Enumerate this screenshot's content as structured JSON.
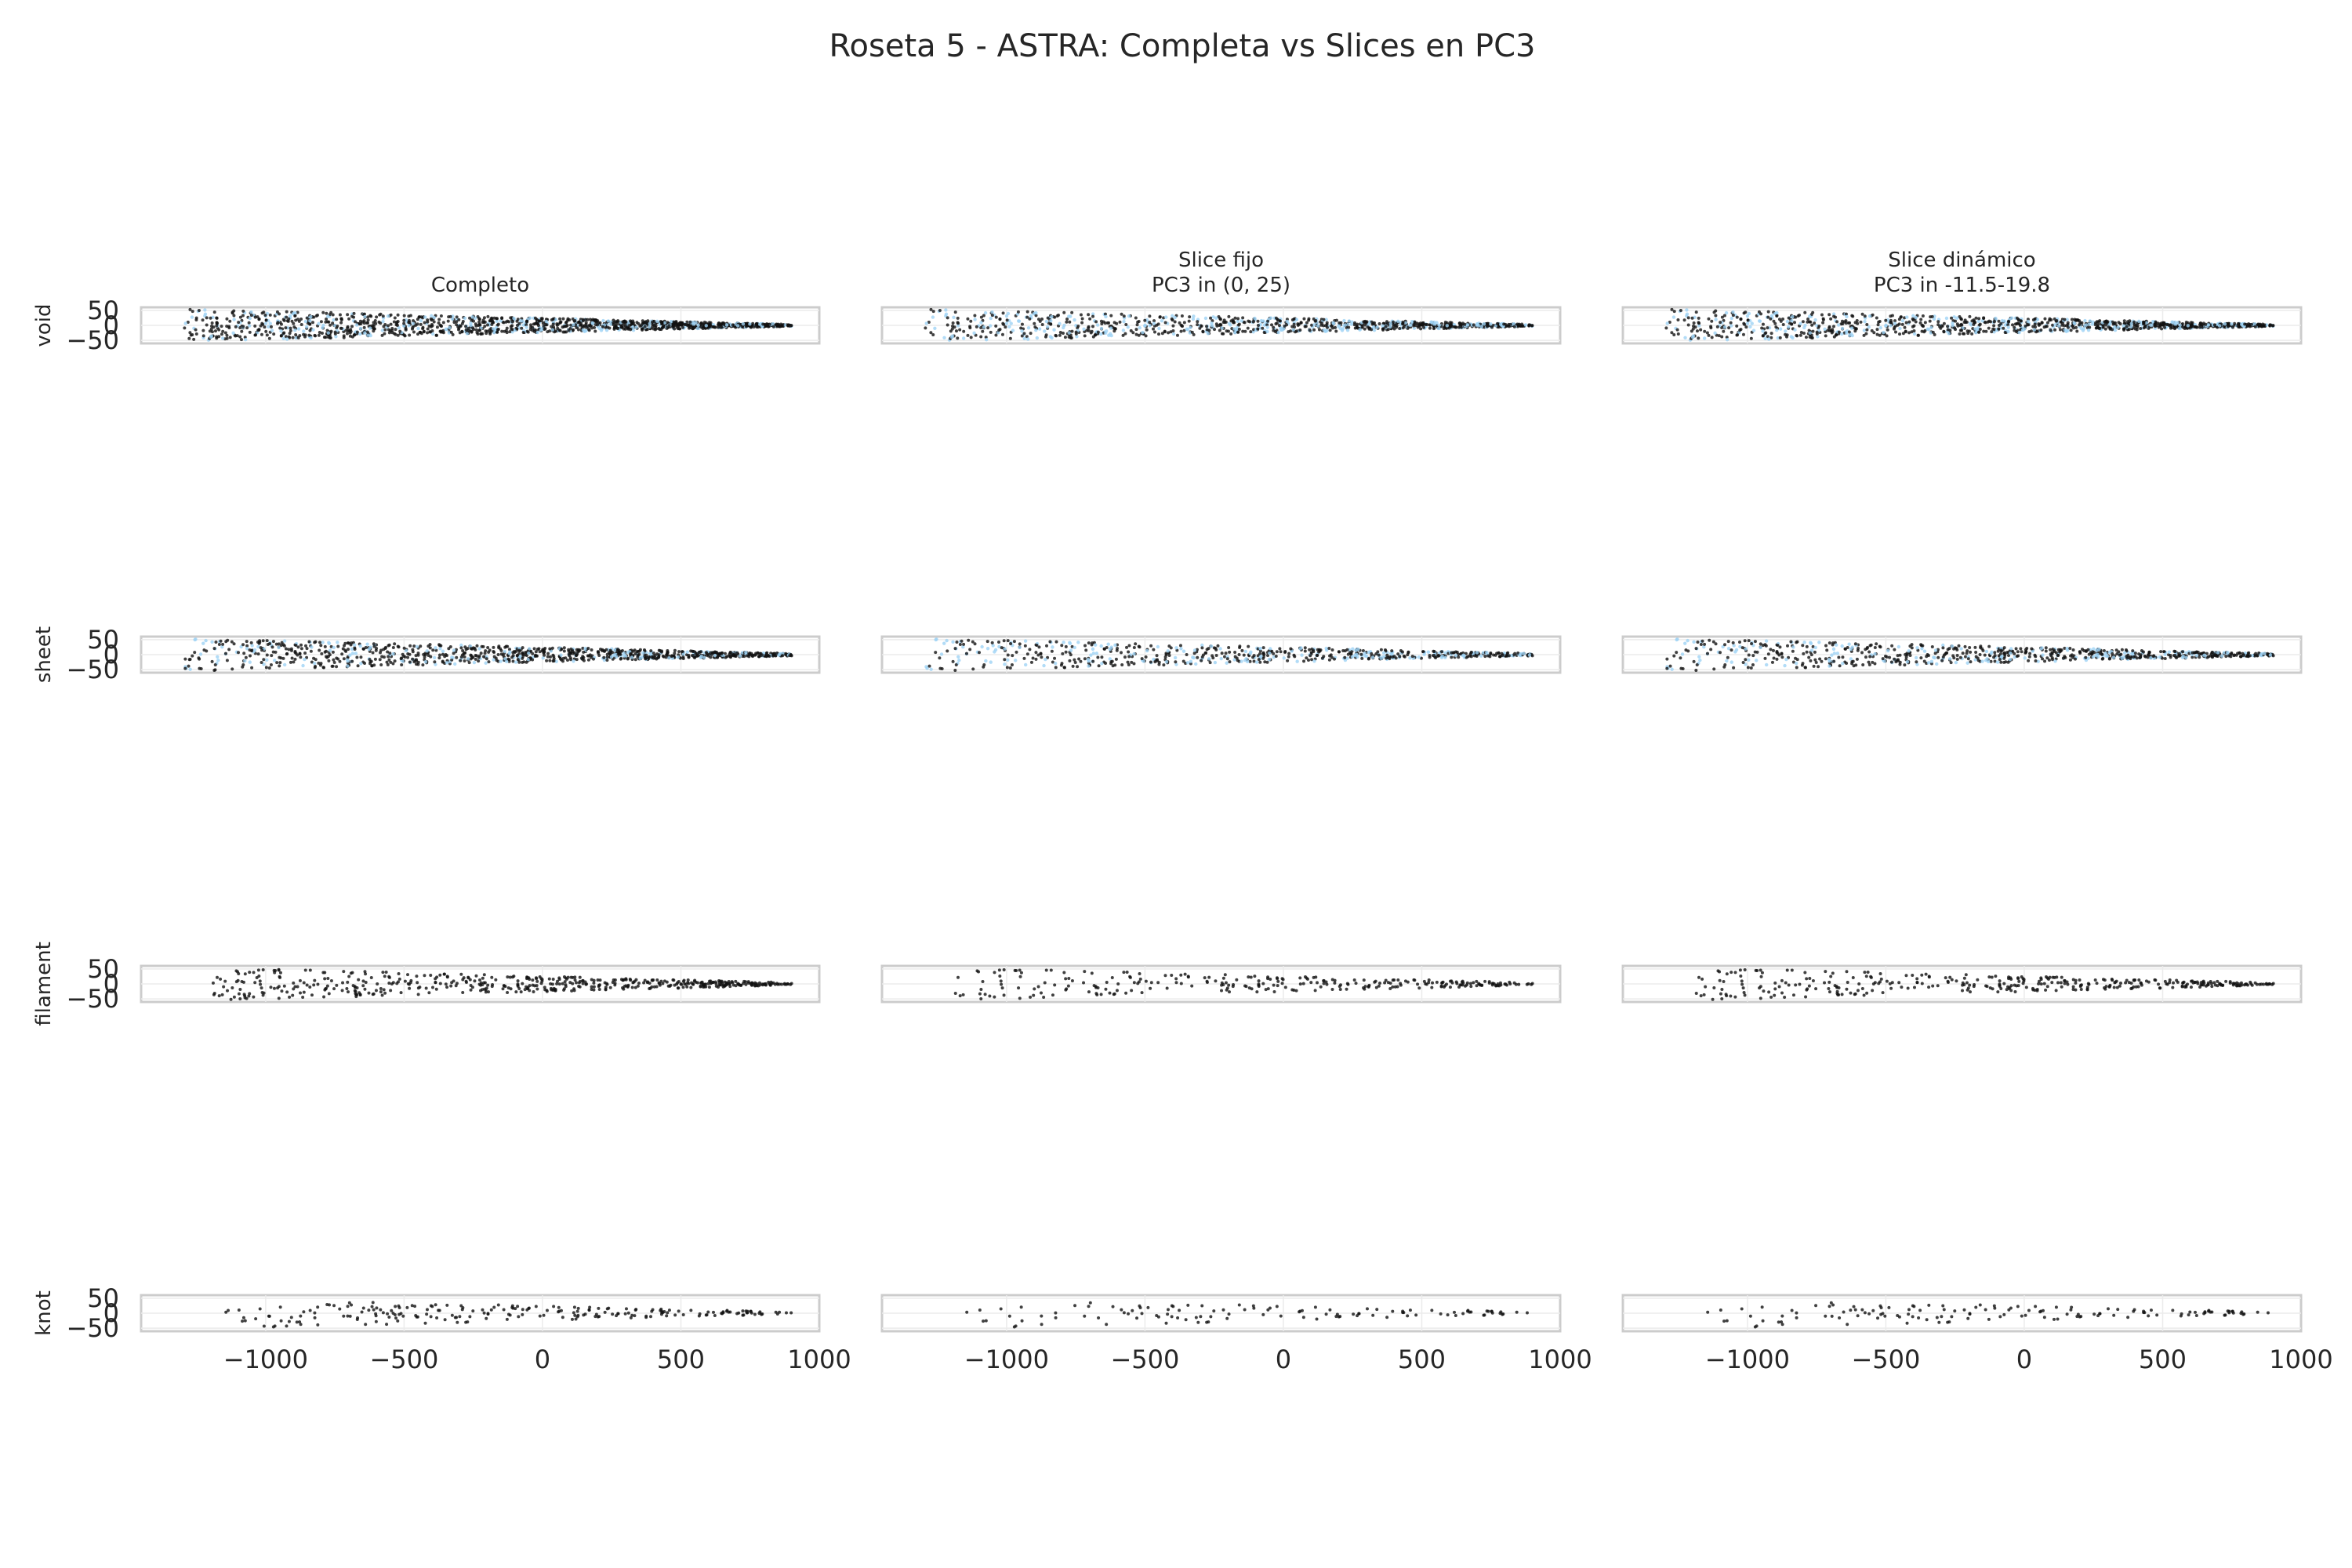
{
  "figure": {
    "title": "Roseta 5 - ASTRA: Completa vs Slices en PC3"
  },
  "colors": {
    "background_points": "#9fd3f5",
    "slice_points": "#111111",
    "frame": "#cccccc",
    "grid": "#ebebeb",
    "text": "#262626"
  },
  "columns": [
    {
      "title_line1": "Completo",
      "title_line2": ""
    },
    {
      "title_line1": "Slice fijo",
      "title_line2": "PC3 in (0, 25)"
    },
    {
      "title_line1": "Slice dinámico",
      "title_line2": "PC3 in -11.5-19.8"
    }
  ],
  "rows": [
    "void",
    "sheet",
    "filament",
    "knot"
  ],
  "chart_data": {
    "type": "scatter",
    "xlim": [
      -1450,
      1000
    ],
    "ylim": [
      -60,
      60
    ],
    "x_ticks": [
      {
        "value": -1000,
        "label": "−1000"
      },
      {
        "value": -500,
        "label": "−500"
      },
      {
        "value": 0,
        "label": "0"
      },
      {
        "value": 500,
        "label": "500"
      },
      {
        "value": 1000,
        "label": "1000"
      }
    ],
    "y_ticks": [
      {
        "value": 50,
        "label": "50"
      },
      {
        "value": 0,
        "label": "0"
      },
      {
        "value": -50,
        "label": "−50"
      }
    ],
    "grid": true,
    "shared_x": true,
    "shared_y": true,
    "series": [
      {
        "name": "void",
        "x_extent": [
          -1300,
          900
        ],
        "y_wedge_at_xmin": 55,
        "y_wedge_at_xmax": 3,
        "density": "very high",
        "background_visible": true
      },
      {
        "name": "sheet",
        "x_extent": [
          -1300,
          900
        ],
        "y_wedge_at_xmin": 55,
        "y_wedge_at_xmax": 4,
        "density": "high",
        "background_visible": true
      },
      {
        "name": "filament",
        "x_extent": [
          -1200,
          900
        ],
        "y_wedge_at_xmin": 55,
        "y_wedge_at_xmax": 4,
        "density": "medium",
        "background_visible": false
      },
      {
        "name": "knot",
        "x_extent": [
          -1150,
          900
        ],
        "y_wedge_at_xmin": 50,
        "y_wedge_at_xmax": 4,
        "density": "low",
        "background_visible": false
      }
    ]
  }
}
